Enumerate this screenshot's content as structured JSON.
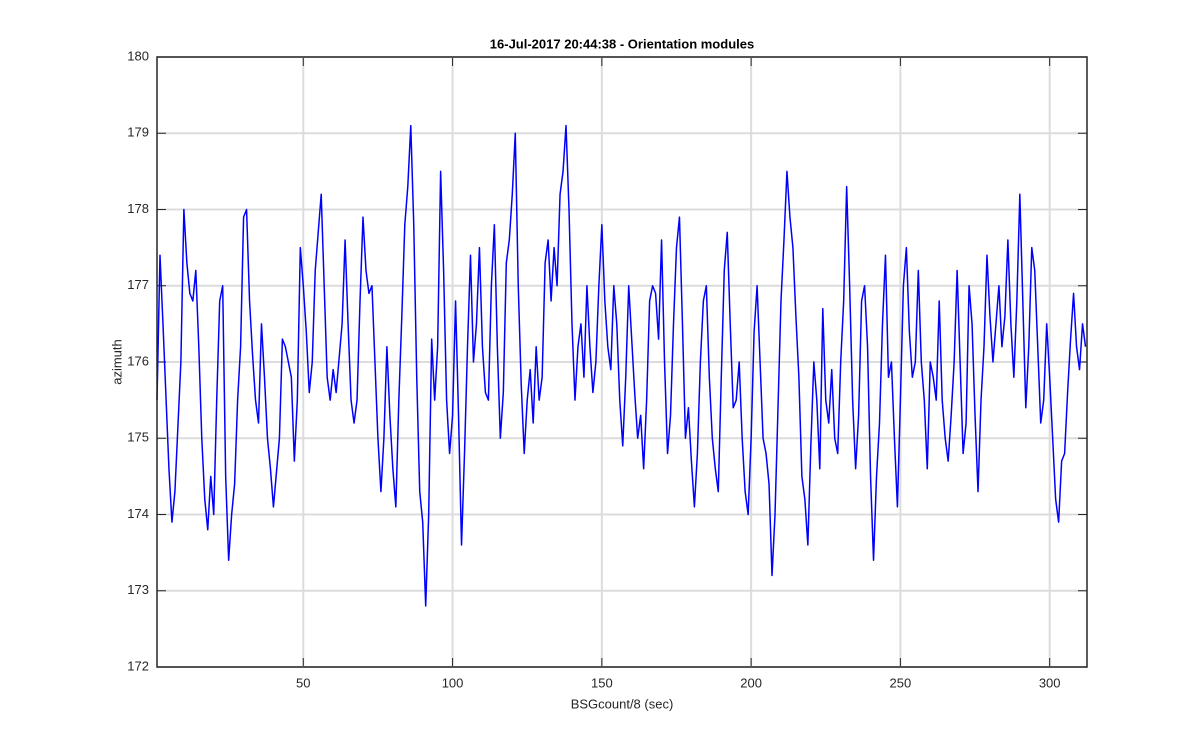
{
  "chart_data": {
    "type": "line",
    "title": "16-Jul-2017 20:44:38 - Orientation modules",
    "x_label": "BSGcount/8 (sec)",
    "y_label": "azimuth",
    "xlim": [
      1,
      312.5
    ],
    "ylim": [
      172,
      180
    ],
    "xticks": [
      50,
      100,
      150,
      200,
      250,
      300
    ],
    "yticks": [
      172,
      173,
      174,
      175,
      176,
      177,
      178,
      179,
      180
    ],
    "grid": true,
    "series": [
      {
        "color": "#0000ff",
        "x": [
          1,
          2,
          3,
          5,
          6,
          7,
          9,
          10,
          11,
          12,
          13,
          14,
          15,
          16,
          17,
          18,
          19,
          20,
          21,
          22,
          23,
          24,
          25,
          26,
          27,
          28,
          29,
          30,
          31,
          32,
          33,
          34,
          35,
          36,
          37,
          38,
          39,
          40,
          42,
          43,
          44,
          46,
          47,
          48,
          49,
          50,
          51,
          52,
          53,
          54,
          56,
          57,
          58,
          59,
          60,
          61,
          63,
          64,
          65,
          66,
          67,
          68,
          69,
          70,
          71,
          72,
          73,
          74,
          75,
          76,
          77,
          78,
          79,
          80,
          81,
          82,
          83,
          84,
          85,
          86,
          87,
          88,
          89,
          90,
          91,
          92,
          93,
          94,
          95,
          96,
          97,
          98,
          99,
          100,
          101,
          102,
          103,
          104,
          105,
          106,
          107,
          108,
          109,
          110,
          111,
          112,
          113,
          114,
          115,
          116,
          117,
          118,
          119,
          120,
          121,
          122,
          123,
          124,
          125,
          126,
          127,
          128,
          129,
          130,
          131,
          132,
          133,
          134,
          135,
          136,
          137,
          138,
          139,
          140,
          141,
          142,
          143,
          144,
          145,
          146,
          147,
          148,
          149,
          150,
          151,
          152,
          153,
          154,
          155,
          156,
          157,
          158,
          159,
          160,
          161,
          162,
          163,
          164,
          165,
          166,
          167,
          168,
          169,
          170,
          171,
          172,
          173,
          174,
          175,
          176,
          177,
          178,
          179,
          180,
          181,
          182,
          183,
          184,
          185,
          186,
          187,
          188,
          189,
          190,
          191,
          192,
          193,
          194,
          195,
          196,
          197,
          198,
          199,
          200,
          201,
          202,
          203,
          204,
          205,
          206,
          207,
          208,
          209,
          210,
          211,
          212,
          213,
          214,
          215,
          216,
          217,
          218,
          219,
          220,
          221,
          222,
          223,
          224,
          225,
          226,
          227,
          228,
          229,
          230,
          231,
          232,
          233,
          234,
          235,
          236,
          237,
          238,
          239,
          240,
          241,
          242,
          243,
          244,
          245,
          246,
          247,
          248,
          249,
          250,
          251,
          252,
          253,
          254,
          255,
          256,
          257,
          258,
          259,
          260,
          261,
          262,
          263,
          264,
          265,
          266,
          267,
          268,
          269,
          270,
          271,
          272,
          273,
          274,
          275,
          276,
          277,
          278,
          279,
          280,
          281,
          282,
          283,
          284,
          285,
          286,
          287,
          288,
          289,
          290,
          291,
          292,
          293,
          294,
          295,
          296,
          297,
          298,
          299,
          300,
          301,
          302,
          303,
          304,
          305,
          306,
          307,
          308,
          309,
          310,
          311,
          312
        ],
        "values": [
          175.5,
          177.4,
          176.5,
          174.6,
          173.9,
          174.3,
          176.0,
          178.0,
          177.3,
          176.9,
          176.8,
          177.2,
          176.2,
          175.0,
          174.2,
          173.8,
          174.5,
          174.0,
          175.5,
          176.8,
          177.0,
          174.5,
          173.4,
          174.0,
          174.4,
          175.5,
          176.2,
          177.9,
          178.0,
          176.8,
          176.1,
          175.5,
          175.2,
          176.5,
          175.8,
          175.0,
          174.6,
          174.1,
          175.0,
          176.3,
          176.2,
          175.8,
          174.7,
          175.5,
          177.5,
          177.0,
          176.4,
          175.6,
          176.0,
          177.2,
          178.2,
          177.0,
          175.8,
          175.5,
          175.9,
          175.6,
          176.5,
          177.6,
          176.5,
          175.5,
          175.2,
          175.5,
          176.8,
          177.9,
          177.2,
          176.9,
          177.0,
          176.0,
          175.0,
          174.3,
          175.0,
          176.2,
          175.3,
          174.6,
          174.1,
          175.5,
          176.6,
          177.8,
          178.3,
          179.1,
          177.8,
          175.8,
          174.3,
          173.9,
          172.8,
          174.0,
          176.3,
          175.5,
          176.2,
          178.5,
          177.2,
          175.5,
          174.8,
          175.3,
          176.8,
          175.3,
          173.6,
          174.8,
          176.2,
          177.4,
          176.0,
          176.5,
          177.5,
          176.2,
          175.6,
          175.5,
          177.0,
          177.8,
          176.2,
          175.0,
          175.6,
          177.3,
          177.6,
          178.2,
          179.0,
          177.0,
          175.7,
          174.8,
          175.5,
          175.9,
          175.2,
          176.2,
          175.5,
          175.8,
          177.3,
          177.6,
          176.8,
          177.5,
          177.0,
          178.2,
          178.5,
          179.1,
          178.0,
          176.5,
          175.5,
          176.2,
          176.5,
          175.8,
          177.0,
          176.2,
          175.6,
          176.0,
          177.0,
          177.8,
          176.8,
          176.2,
          175.9,
          177.0,
          176.5,
          175.5,
          174.9,
          175.8,
          177.0,
          176.3,
          175.6,
          175.0,
          175.3,
          174.6,
          175.5,
          176.8,
          177.0,
          176.9,
          176.3,
          177.6,
          176.0,
          174.8,
          175.3,
          176.5,
          177.5,
          177.9,
          176.5,
          175.0,
          175.4,
          174.7,
          174.1,
          174.8,
          176.0,
          176.8,
          177.0,
          175.8,
          175.0,
          174.6,
          174.3,
          175.8,
          177.2,
          177.7,
          176.5,
          175.4,
          175.5,
          176.0,
          175.0,
          174.3,
          174.0,
          175.0,
          176.4,
          177.0,
          176.0,
          175.0,
          174.8,
          174.4,
          173.2,
          174.0,
          175.4,
          176.8,
          177.6,
          178.5,
          177.9,
          177.5,
          176.6,
          175.8,
          174.5,
          174.2,
          173.6,
          174.9,
          176.0,
          175.5,
          174.6,
          176.7,
          175.5,
          175.2,
          175.9,
          175.0,
          174.8,
          176.0,
          176.8,
          178.3,
          177.0,
          175.5,
          174.6,
          175.3,
          176.8,
          177.0,
          176.2,
          174.5,
          173.4,
          174.5,
          175.2,
          176.5,
          177.4,
          175.8,
          176.0,
          175.0,
          174.1,
          175.5,
          177.0,
          177.5,
          176.4,
          175.8,
          176.0,
          177.2,
          176.0,
          175.5,
          174.6,
          176.0,
          175.8,
          175.5,
          176.8,
          175.5,
          175.0,
          174.7,
          175.3,
          176.0,
          177.2,
          176.0,
          174.8,
          175.2,
          177.0,
          176.5,
          175.3,
          174.3,
          175.5,
          176.2,
          177.4,
          176.6,
          176.0,
          176.5,
          177.0,
          176.2,
          176.6,
          177.6,
          176.5,
          175.8,
          176.8,
          178.2,
          176.8,
          175.4,
          176.2,
          177.5,
          177.2,
          176.2,
          175.2,
          175.5,
          176.5,
          175.8,
          175.0,
          174.2,
          173.9,
          174.7,
          174.8,
          175.6,
          176.3,
          176.9,
          176.2,
          175.9,
          176.5,
          176.2
        ]
      }
    ]
  }
}
